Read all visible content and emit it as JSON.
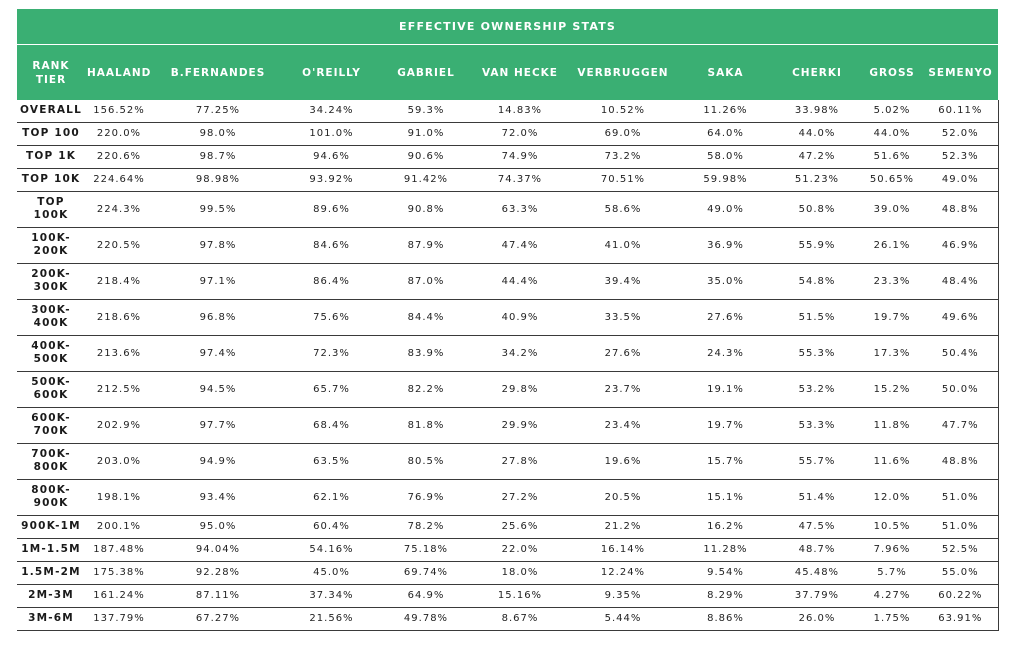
{
  "title": "EFFECTIVE OWNERSHIP STATS",
  "columns": [
    "RANK TIER",
    "HAALAND",
    "B.FERNANDES",
    "O'REILLY",
    "GABRIEL",
    "VAN HECKE",
    "VERBRUGGEN",
    "SAKA",
    "CHERKI",
    "GROSS",
    "SEMENYO"
  ],
  "rows": [
    {
      "tier": "OVERALL",
      "values": [
        "156.52%",
        "77.25%",
        "34.24%",
        "59.3%",
        "14.83%",
        "10.52%",
        "11.26%",
        "33.98%",
        "5.02%",
        "60.11%"
      ]
    },
    {
      "tier": "TOP 100",
      "values": [
        "220.0%",
        "98.0%",
        "101.0%",
        "91.0%",
        "72.0%",
        "69.0%",
        "64.0%",
        "44.0%",
        "44.0%",
        "52.0%"
      ]
    },
    {
      "tier": "TOP 1K",
      "values": [
        "220.6%",
        "98.7%",
        "94.6%",
        "90.6%",
        "74.9%",
        "73.2%",
        "58.0%",
        "47.2%",
        "51.6%",
        "52.3%"
      ]
    },
    {
      "tier": "TOP 10K",
      "values": [
        "224.64%",
        "98.98%",
        "93.92%",
        "91.42%",
        "74.37%",
        "70.51%",
        "59.98%",
        "51.23%",
        "50.65%",
        "49.0%"
      ]
    },
    {
      "tier": "TOP 100K",
      "values": [
        "224.3%",
        "99.5%",
        "89.6%",
        "90.8%",
        "63.3%",
        "58.6%",
        "49.0%",
        "50.8%",
        "39.0%",
        "48.8%"
      ]
    },
    {
      "tier": "100K-200K",
      "values": [
        "220.5%",
        "97.8%",
        "84.6%",
        "87.9%",
        "47.4%",
        "41.0%",
        "36.9%",
        "55.9%",
        "26.1%",
        "46.9%"
      ]
    },
    {
      "tier": "200K-300K",
      "values": [
        "218.4%",
        "97.1%",
        "86.4%",
        "87.0%",
        "44.4%",
        "39.4%",
        "35.0%",
        "54.8%",
        "23.3%",
        "48.4%"
      ]
    },
    {
      "tier": "300K-400K",
      "values": [
        "218.6%",
        "96.8%",
        "75.6%",
        "84.4%",
        "40.9%",
        "33.5%",
        "27.6%",
        "51.5%",
        "19.7%",
        "49.6%"
      ]
    },
    {
      "tier": "400K-500K",
      "values": [
        "213.6%",
        "97.4%",
        "72.3%",
        "83.9%",
        "34.2%",
        "27.6%",
        "24.3%",
        "55.3%",
        "17.3%",
        "50.4%"
      ]
    },
    {
      "tier": "500K-600K",
      "values": [
        "212.5%",
        "94.5%",
        "65.7%",
        "82.2%",
        "29.8%",
        "23.7%",
        "19.1%",
        "53.2%",
        "15.2%",
        "50.0%"
      ]
    },
    {
      "tier": "600K-700K",
      "values": [
        "202.9%",
        "97.7%",
        "68.4%",
        "81.8%",
        "29.9%",
        "23.4%",
        "19.7%",
        "53.3%",
        "11.8%",
        "47.7%"
      ]
    },
    {
      "tier": "700K-800K",
      "values": [
        "203.0%",
        "94.9%",
        "63.5%",
        "80.5%",
        "27.8%",
        "19.6%",
        "15.7%",
        "55.7%",
        "11.6%",
        "48.8%"
      ]
    },
    {
      "tier": "800K-900K",
      "values": [
        "198.1%",
        "93.4%",
        "62.1%",
        "76.9%",
        "27.2%",
        "20.5%",
        "15.1%",
        "51.4%",
        "12.0%",
        "51.0%"
      ]
    },
    {
      "tier": "900K-1M",
      "values": [
        "200.1%",
        "95.0%",
        "60.4%",
        "78.2%",
        "25.6%",
        "21.2%",
        "16.2%",
        "47.5%",
        "10.5%",
        "51.0%"
      ]
    },
    {
      "tier": "1M-1.5M",
      "values": [
        "187.48%",
        "94.04%",
        "54.16%",
        "75.18%",
        "22.0%",
        "16.14%",
        "11.28%",
        "48.7%",
        "7.96%",
        "52.5%"
      ]
    },
    {
      "tier": "1.5M-2M",
      "values": [
        "175.38%",
        "92.28%",
        "45.0%",
        "69.74%",
        "18.0%",
        "12.24%",
        "9.54%",
        "45.48%",
        "5.7%",
        "55.0%"
      ]
    },
    {
      "tier": "2M-3M",
      "values": [
        "161.24%",
        "87.11%",
        "37.34%",
        "64.9%",
        "15.16%",
        "9.35%",
        "8.29%",
        "37.79%",
        "4.27%",
        "60.22%"
      ]
    },
    {
      "tier": "3M-6M",
      "values": [
        "137.79%",
        "67.27%",
        "21.56%",
        "49.78%",
        "8.67%",
        "5.44%",
        "8.86%",
        "26.0%",
        "1.75%",
        "63.91%"
      ]
    }
  ],
  "colors": {
    "header_green": "#3aaf73",
    "header_text": "#ffffff",
    "rule": "#3a3a3a"
  }
}
